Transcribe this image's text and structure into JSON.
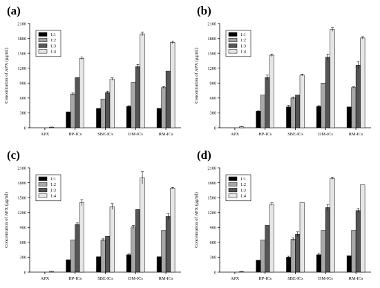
{
  "figure": {
    "panels": [
      {
        "label": "(a)"
      },
      {
        "label": "(b)"
      },
      {
        "label": "(c)"
      },
      {
        "label": "(d)"
      }
    ]
  },
  "chart_data": [
    {
      "panel": "(a)",
      "type": "bar",
      "ylabel": "Concentration of APX (μg/ml)",
      "ylim": [
        0,
        2100
      ],
      "yticks": [
        0,
        300,
        600,
        900,
        1200,
        1500,
        1800,
        2100
      ],
      "categories": [
        "APX",
        "HP-ICs",
        "SBE-ICs",
        "DM-ICs",
        "RM-ICs"
      ],
      "legend_position": "top-left",
      "series": [
        {
          "name": "1:1",
          "color": "#000000",
          "values": [
            null,
            320,
            390,
            430,
            390
          ],
          "errors": [
            0,
            0,
            0,
            15,
            0
          ]
        },
        {
          "name": "1:2",
          "color": "#a8a8a8",
          "values": [
            null,
            680,
            580,
            910,
            810
          ],
          "errors": [
            0,
            25,
            0,
            0,
            20
          ]
        },
        {
          "name": "1:3",
          "color": "#555555",
          "values": [
            null,
            1010,
            710,
            1230,
            1140
          ],
          "errors": [
            0,
            0,
            25,
            40,
            0
          ]
        },
        {
          "name": "1:4",
          "color": "#e6e6e6",
          "values": [
            10,
            1400,
            980,
            1890,
            1720
          ],
          "errors": [
            5,
            25,
            25,
            40,
            25
          ]
        }
      ]
    },
    {
      "panel": "(b)",
      "type": "bar",
      "ylabel": "Concentration of APX (μg/ml)",
      "ylim": [
        0,
        2100
      ],
      "yticks": [
        0,
        300,
        600,
        900,
        1200,
        1500,
        1800,
        2100
      ],
      "categories": [
        "APX",
        "HP-ICs",
        "SBE-ICs",
        "DM-ICs",
        "RM-ICs"
      ],
      "legend_position": "top-left",
      "series": [
        {
          "name": "1:1",
          "color": "#000000",
          "values": [
            null,
            330,
            420,
            430,
            420
          ],
          "errors": [
            0,
            15,
            30,
            15,
            0
          ]
        },
        {
          "name": "1:2",
          "color": "#a8a8a8",
          "values": [
            null,
            660,
            600,
            900,
            810
          ],
          "errors": [
            0,
            0,
            20,
            0,
            15
          ]
        },
        {
          "name": "1:3",
          "color": "#555555",
          "values": [
            null,
            1010,
            660,
            1420,
            1260
          ],
          "errors": [
            0,
            50,
            0,
            60,
            70
          ]
        },
        {
          "name": "1:4",
          "color": "#e6e6e6",
          "values": [
            20,
            1460,
            1060,
            1980,
            1810
          ],
          "errors": [
            5,
            25,
            20,
            40,
            25
          ]
        }
      ]
    },
    {
      "panel": "(c)",
      "type": "bar",
      "ylabel": "Concentration of APX (μg/ml)",
      "ylim": [
        0,
        2100
      ],
      "yticks": [
        0,
        300,
        600,
        900,
        1200,
        1500,
        1800,
        2100
      ],
      "categories": [
        "APX",
        "HP-ICs",
        "SBE-ICs",
        "DM-ICs",
        "RM-ICs"
      ],
      "legend_position": "top-left",
      "series": [
        {
          "name": "1:1",
          "color": "#000000",
          "values": [
            null,
            250,
            310,
            350,
            310
          ],
          "errors": [
            0,
            0,
            0,
            15,
            0
          ]
        },
        {
          "name": "1:2",
          "color": "#a8a8a8",
          "values": [
            null,
            650,
            650,
            910,
            840
          ],
          "errors": [
            0,
            0,
            20,
            30,
            0
          ]
        },
        {
          "name": "1:3",
          "color": "#555555",
          "values": [
            null,
            960,
            720,
            1260,
            1120
          ],
          "errors": [
            0,
            30,
            0,
            0,
            60
          ]
        },
        {
          "name": "1:4",
          "color": "#e6e6e6",
          "values": [
            15,
            1400,
            1320,
            1900,
            1690
          ],
          "errors": [
            5,
            60,
            60,
            120,
            15
          ]
        }
      ]
    },
    {
      "panel": "(d)",
      "type": "bar",
      "ylabel": "Concentration of APX (μg/ml)",
      "ylim": [
        0,
        2100
      ],
      "yticks": [
        0,
        300,
        600,
        900,
        1200,
        1500,
        1800,
        2100
      ],
      "categories": [
        "APX",
        "HP-ICs",
        "SBE-ICs",
        "DM-ICs",
        "RM-ICs"
      ],
      "legend_position": "top-left",
      "series": [
        {
          "name": "1:1",
          "color": "#000000",
          "values": [
            null,
            240,
            300,
            350,
            330
          ],
          "errors": [
            0,
            0,
            20,
            30,
            0
          ]
        },
        {
          "name": "1:2",
          "color": "#a8a8a8",
          "values": [
            null,
            650,
            660,
            840,
            840
          ],
          "errors": [
            0,
            0,
            30,
            0,
            0
          ]
        },
        {
          "name": "1:3",
          "color": "#555555",
          "values": [
            null,
            940,
            760,
            1300,
            1240
          ],
          "errors": [
            0,
            0,
            50,
            60,
            40
          ]
        },
        {
          "name": "1:4",
          "color": "#e6e6e6",
          "values": [
            10,
            1370,
            1400,
            1890,
            1760
          ],
          "errors": [
            5,
            25,
            0,
            25,
            0
          ]
        }
      ]
    }
  ]
}
